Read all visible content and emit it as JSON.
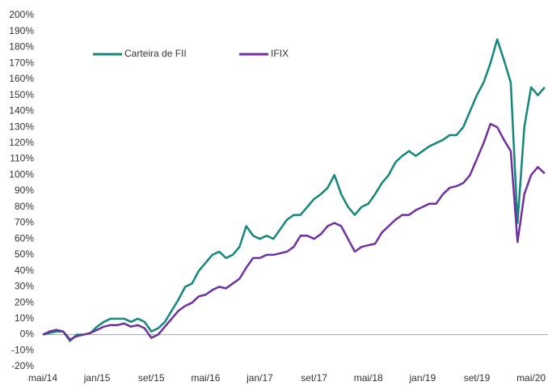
{
  "chart_data": {
    "type": "line",
    "categories": [
      "mai/14",
      null,
      null,
      null,
      null,
      null,
      null,
      null,
      "jan/15",
      null,
      null,
      null,
      null,
      null,
      null,
      null,
      "set/15",
      null,
      null,
      null,
      null,
      null,
      null,
      null,
      "mai/16",
      null,
      null,
      null,
      null,
      null,
      null,
      null,
      "jan/17",
      null,
      null,
      null,
      null,
      null,
      null,
      null,
      "set/17",
      null,
      null,
      null,
      null,
      null,
      null,
      null,
      "mai/18",
      null,
      null,
      null,
      null,
      null,
      null,
      null,
      "jan/19",
      null,
      null,
      null,
      null,
      null,
      null,
      null,
      "set/19",
      null,
      null,
      null,
      null,
      null,
      null,
      null,
      "mai/20",
      null,
      null
    ],
    "series": [
      {
        "name": "Carteira de FII",
        "color": "#13877b",
        "values": [
          0,
          1,
          2,
          2,
          -4,
          0,
          0,
          1,
          5,
          8,
          10,
          10,
          10,
          8,
          10,
          8,
          2,
          4,
          8,
          15,
          22,
          30,
          32,
          40,
          45,
          50,
          52,
          48,
          50,
          55,
          68,
          62,
          60,
          62,
          60,
          66,
          72,
          75,
          75,
          80,
          85,
          88,
          92,
          100,
          88,
          80,
          75,
          80,
          82,
          88,
          95,
          100,
          108,
          112,
          115,
          112,
          115,
          118,
          120,
          122,
          125,
          125,
          130,
          140,
          150,
          158,
          170,
          185,
          172,
          158,
          70,
          130,
          155,
          150,
          155
        ]
      },
      {
        "name": "IFIX",
        "color": "#7030a0",
        "values": [
          0,
          2,
          3,
          2,
          -3,
          -1,
          0,
          1,
          3,
          5,
          6,
          6,
          7,
          5,
          6,
          4,
          -2,
          0,
          5,
          10,
          15,
          18,
          20,
          24,
          25,
          28,
          30,
          29,
          32,
          35,
          42,
          48,
          48,
          50,
          50,
          51,
          52,
          55,
          62,
          62,
          60,
          63,
          68,
          70,
          68,
          60,
          52,
          55,
          56,
          57,
          64,
          68,
          72,
          75,
          75,
          78,
          80,
          82,
          82,
          88,
          92,
          93,
          95,
          100,
          110,
          120,
          132,
          130,
          122,
          115,
          58,
          88,
          100,
          105,
          101
        ]
      }
    ],
    "ylim": [
      -20,
      200
    ],
    "yticks": [
      {
        "value": -20,
        "label": "-20%"
      },
      {
        "value": -10,
        "label": "-10%"
      },
      {
        "value": 0,
        "label": "0%"
      },
      {
        "value": 10,
        "label": "10%"
      },
      {
        "value": 20,
        "label": "20%"
      },
      {
        "value": 30,
        "label": "30%"
      },
      {
        "value": 40,
        "label": "40%"
      },
      {
        "value": 50,
        "label": "50%"
      },
      {
        "value": 60,
        "label": "60%"
      },
      {
        "value": 70,
        "label": "70%"
      },
      {
        "value": 80,
        "label": "80%"
      },
      {
        "value": 90,
        "label": "90%"
      },
      {
        "value": 100,
        "label": "100%"
      },
      {
        "value": 110,
        "label": "110%"
      },
      {
        "value": 120,
        "label": "120%"
      },
      {
        "value": 130,
        "label": "130%"
      },
      {
        "value": 140,
        "label": "140%"
      },
      {
        "value": 150,
        "label": "150%"
      },
      {
        "value": 160,
        "label": "160%"
      },
      {
        "value": 170,
        "label": "170%"
      },
      {
        "value": 180,
        "label": "180%"
      },
      {
        "value": 190,
        "label": "190%"
      },
      {
        "value": 200,
        "label": "200%"
      }
    ]
  }
}
